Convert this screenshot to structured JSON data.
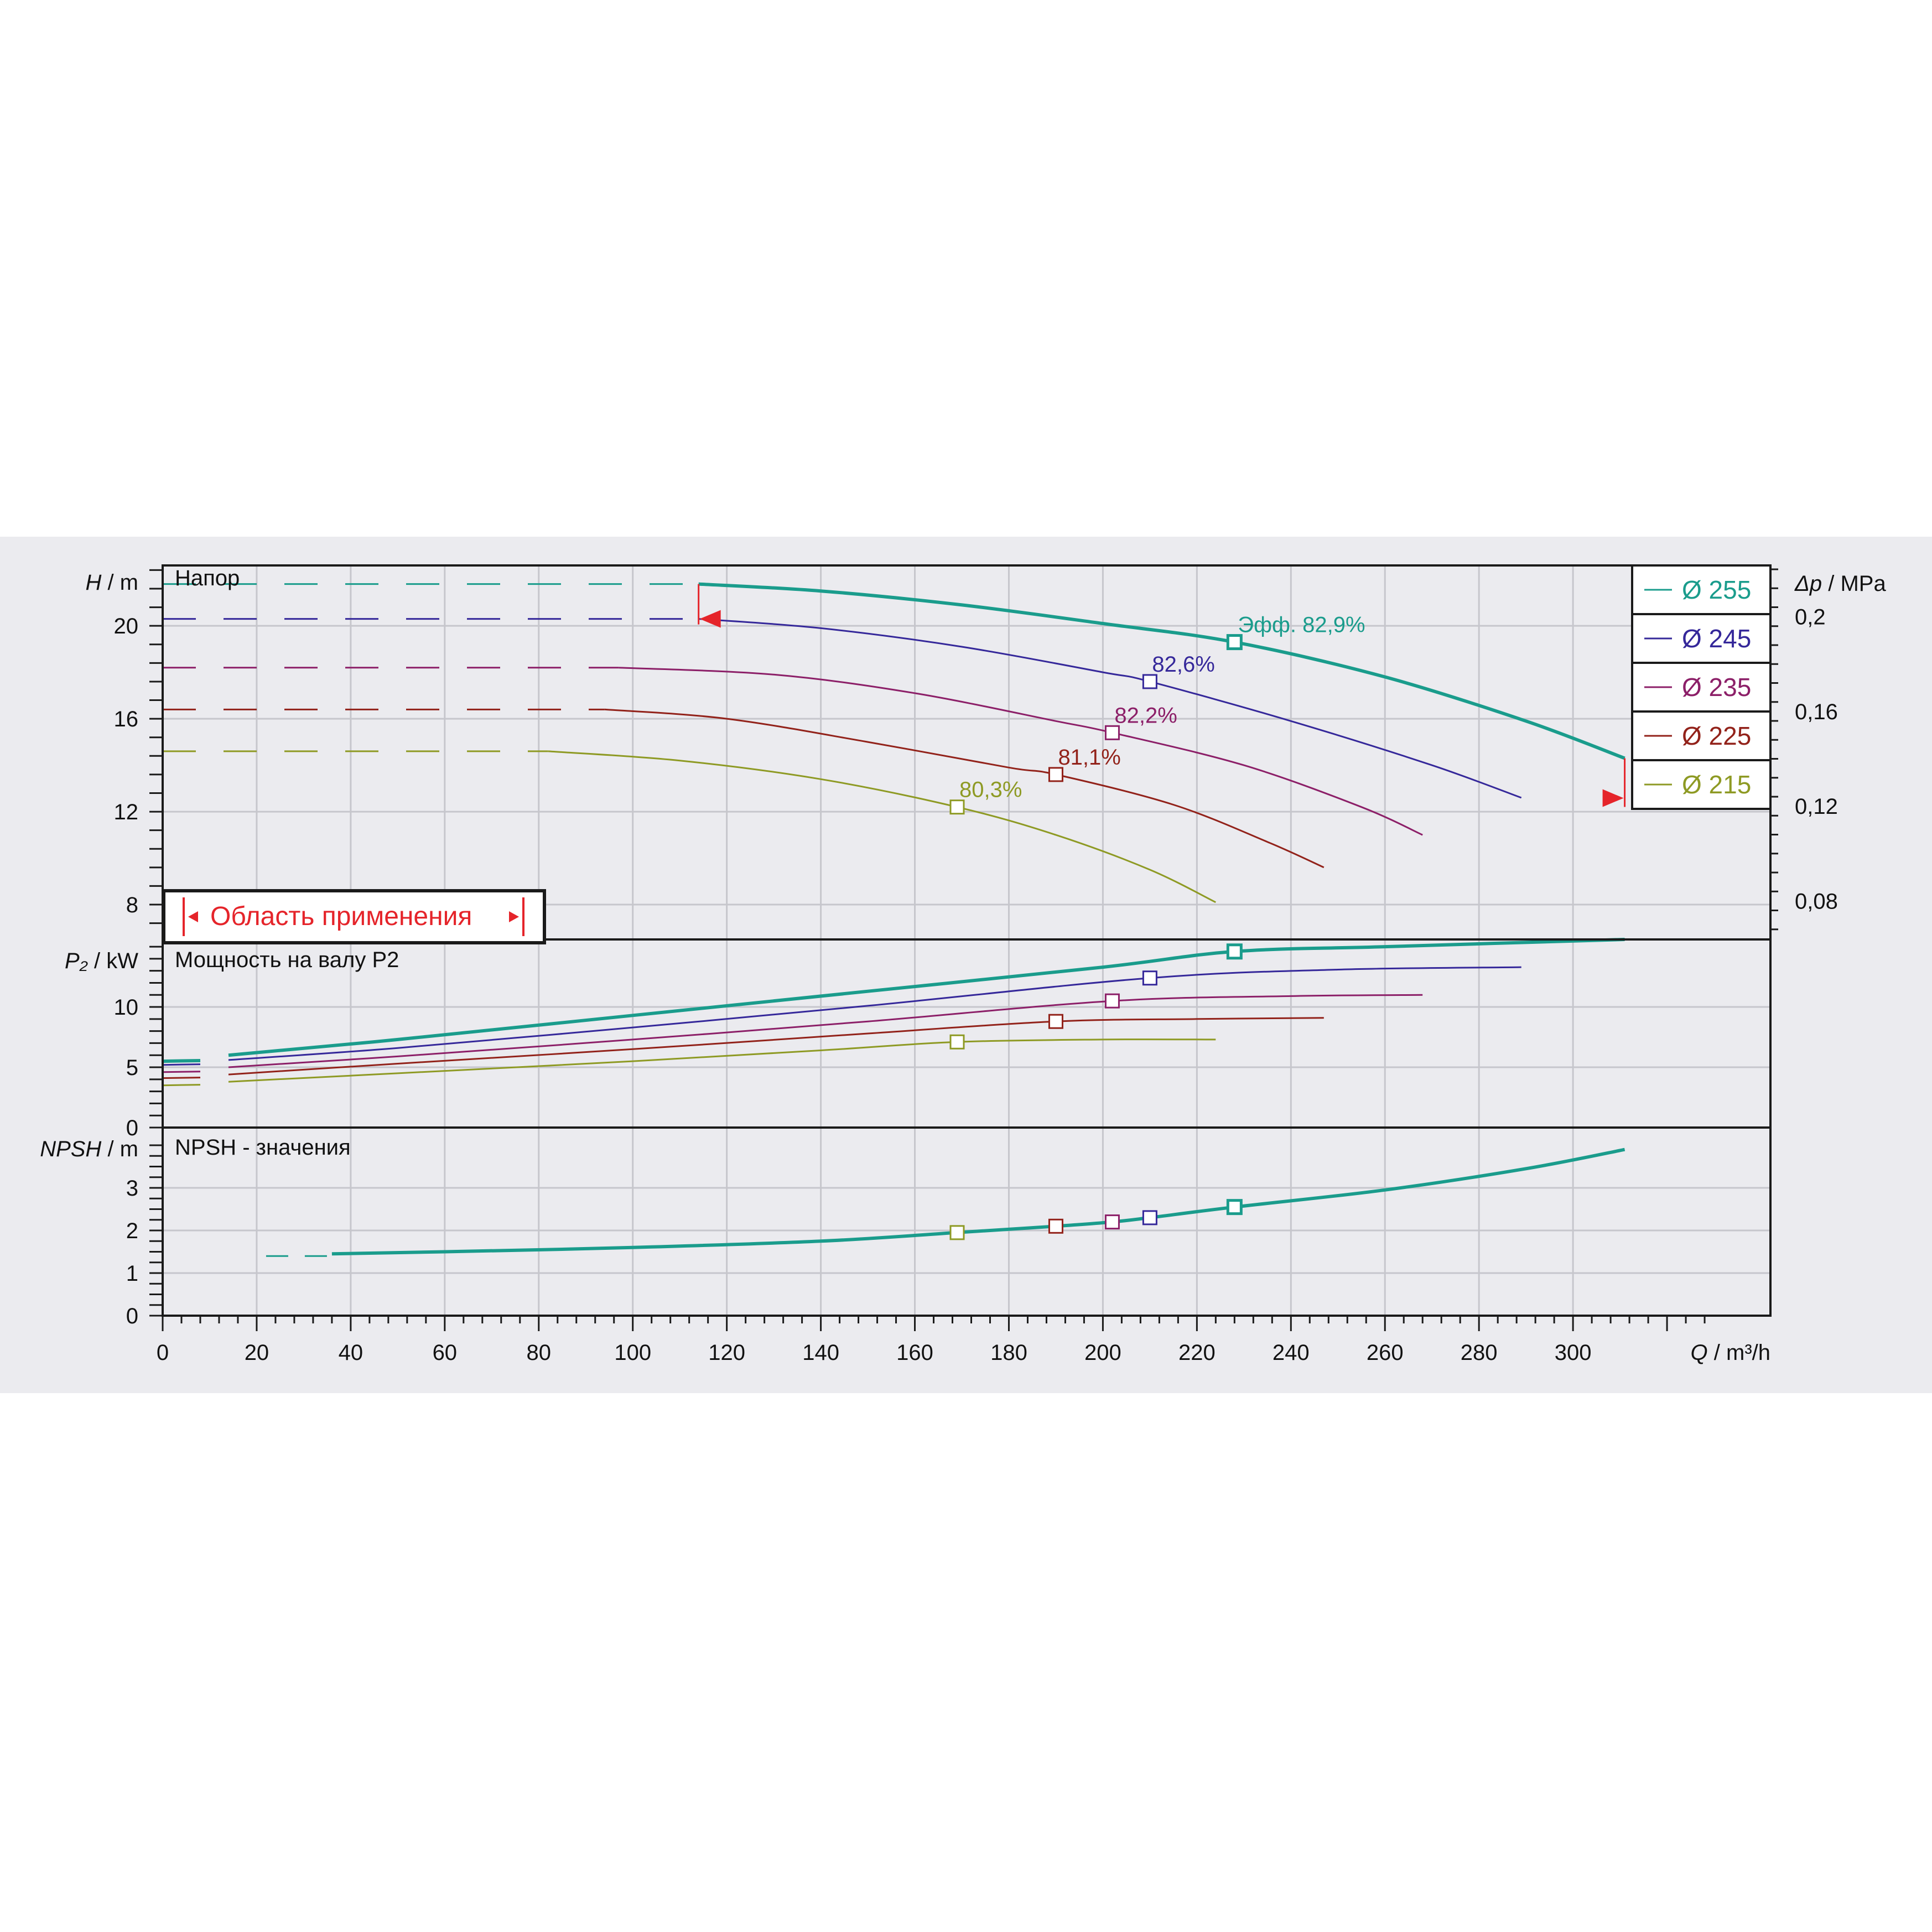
{
  "chart_data": [
    {
      "type": "line",
      "panel": "head",
      "title": "Напор",
      "ylabel_var": "H",
      "ylabel_unit": "m",
      "yticks": [
        "8",
        "12",
        "16",
        "20"
      ],
      "ylim": [
        6.5,
        22.6
      ],
      "right_axis": {
        "label_var": "Δp",
        "label_unit": "MPa",
        "ticks": [
          "0,08",
          "0,12",
          "0,16",
          "0,2"
        ],
        "tick_values": [
          0.08,
          0.12,
          0.16,
          0.2
        ]
      },
      "application_range_label": "Область применения",
      "application_range": [
        114,
        311
      ],
      "series": [
        {
          "name": "Ø 255",
          "color": "#1a9c8c",
          "dashed_x": [
            0,
            114
          ],
          "x": [
            114,
            140,
            170,
            200,
            228,
            260,
            290,
            311
          ],
          "y": [
            21.8,
            21.5,
            20.9,
            20.1,
            19.3,
            17.8,
            15.9,
            14.3
          ],
          "bep": {
            "x": 228,
            "y": 19.3,
            "label": "Эфф.  82,9%"
          }
        },
        {
          "name": "Ø 245",
          "color": "#35289a",
          "dashed_x": [
            0,
            114
          ],
          "x": [
            114,
            140,
            170,
            200,
            210,
            240,
            270,
            289
          ],
          "y": [
            20.3,
            19.9,
            19.1,
            18.0,
            17.6,
            15.9,
            14.0,
            12.6
          ],
          "bep": {
            "x": 210,
            "y": 17.6,
            "label": "82,6%"
          }
        },
        {
          "name": "Ø 235",
          "color": "#8c1f68",
          "dashed_x": [
            0,
            97
          ],
          "x": [
            97,
            130,
            160,
            190,
            202,
            230,
            255,
            268
          ],
          "y": [
            18.2,
            17.9,
            17.1,
            15.9,
            15.4,
            14.0,
            12.2,
            11.0
          ],
          "bep": {
            "x": 202,
            "y": 15.4,
            "label": "82,2%"
          }
        },
        {
          "name": "Ø 225",
          "color": "#92221a",
          "dashed_x": [
            0,
            94
          ],
          "x": [
            94,
            120,
            150,
            180,
            190,
            215,
            235,
            247
          ],
          "y": [
            16.4,
            16.0,
            15.0,
            13.9,
            13.6,
            12.3,
            10.7,
            9.6
          ],
          "bep": {
            "x": 190,
            "y": 13.6,
            "label": "81,1%"
          }
        },
        {
          "name": "Ø 215",
          "color": "#8e9a24",
          "dashed_x": [
            0,
            82
          ],
          "x": [
            82,
            110,
            140,
            169,
            190,
            210,
            224
          ],
          "y": [
            14.6,
            14.2,
            13.4,
            12.2,
            11.0,
            9.5,
            8.1
          ],
          "bep": {
            "x": 169,
            "y": 12.2,
            "label": "80,3%"
          }
        }
      ]
    },
    {
      "type": "line",
      "panel": "power",
      "title": "Мощность на валу P2",
      "ylabel_var": "P₂",
      "ylabel_unit": "kW",
      "yticks": [
        "0",
        "5",
        "10"
      ],
      "ylim": [
        0,
        15.6
      ],
      "series": [
        {
          "name": "Ø 255",
          "color": "#1a9c8c",
          "x": [
            0,
            14,
            50,
            100,
            150,
            200,
            228,
            260,
            311
          ],
          "y": [
            5.5,
            6.0,
            7.3,
            9.3,
            11.3,
            13.3,
            14.6,
            15.0,
            15.6
          ],
          "bep_x": 228,
          "bep_y": 14.6
        },
        {
          "name": "Ø 245",
          "color": "#35289a",
          "x": [
            0,
            14,
            50,
            100,
            150,
            210,
            250,
            289
          ],
          "y": [
            5.2,
            5.6,
            6.6,
            8.3,
            10.1,
            12.4,
            13.1,
            13.3
          ],
          "bep_x": 210,
          "bep_y": 12.4
        },
        {
          "name": "Ø 235",
          "color": "#8c1f68",
          "x": [
            0,
            14,
            50,
            100,
            150,
            202,
            240,
            268
          ],
          "y": [
            4.6,
            5.0,
            5.9,
            7.3,
            8.8,
            10.5,
            10.9,
            11.0
          ],
          "bep_x": 202,
          "bep_y": 10.5
        },
        {
          "name": "Ø 225",
          "color": "#92221a",
          "x": [
            0,
            14,
            50,
            100,
            150,
            190,
            220,
            247
          ],
          "y": [
            4.1,
            4.4,
            5.3,
            6.5,
            7.8,
            8.8,
            9.0,
            9.1
          ],
          "bep_x": 190,
          "bep_y": 8.8
        },
        {
          "name": "Ø 215",
          "color": "#8e9a24",
          "x": [
            0,
            14,
            50,
            100,
            140,
            169,
            200,
            224
          ],
          "y": [
            3.5,
            3.8,
            4.5,
            5.5,
            6.4,
            7.1,
            7.3,
            7.3
          ],
          "bep_x": 169,
          "bep_y": 7.1
        }
      ]
    },
    {
      "type": "line",
      "panel": "npsh",
      "title": "NPSH - значения",
      "ylabel_var": "NPSH",
      "ylabel_unit": "m",
      "yticks": [
        "0",
        "1",
        "2",
        "3"
      ],
      "ylim": [
        0,
        4.0
      ],
      "series": [
        {
          "name": "Ø 255",
          "color": "#1a9c8c",
          "dashed_x": [
            22,
            36
          ],
          "x": [
            36,
            60,
            100,
            140,
            169,
            190,
            202,
            210,
            228,
            260,
            290,
            311
          ],
          "y": [
            1.45,
            1.5,
            1.6,
            1.75,
            1.95,
            2.1,
            2.2,
            2.3,
            2.55,
            2.95,
            3.45,
            3.9
          ]
        }
      ],
      "markers": [
        {
          "series": "Ø 215",
          "color": "#8e9a24",
          "x": 169,
          "y": 1.95
        },
        {
          "series": "Ø 225",
          "color": "#92221a",
          "x": 190,
          "y": 2.1
        },
        {
          "series": "Ø 235",
          "color": "#8c1f68",
          "x": 202,
          "y": 2.2
        },
        {
          "series": "Ø 245",
          "color": "#35289a",
          "x": 210,
          "y": 2.3
        },
        {
          "series": "Ø 255",
          "color": "#1a9c8c",
          "x": 228,
          "y": 2.55
        }
      ]
    }
  ],
  "x_axis": {
    "label_var": "Q",
    "label_unit": "m³/h",
    "ticks": [
      "0",
      "20",
      "40",
      "60",
      "80",
      "100",
      "120",
      "140",
      "160",
      "180",
      "200",
      "220",
      "240",
      "260",
      "280",
      "300"
    ],
    "tick_values": [
      0,
      20,
      40,
      60,
      80,
      100,
      120,
      140,
      160,
      180,
      200,
      220,
      240,
      260,
      280,
      300
    ],
    "xlim": [
      0,
      342
    ]
  },
  "legend": {
    "placement": "top-right",
    "items": [
      "Ø 255",
      "Ø 245",
      "Ø 235",
      "Ø 225",
      "Ø 215"
    ]
  },
  "colors": {
    "band": "#ebebef",
    "plot_bg": "#ebebef",
    "grid": "#c6c6cc",
    "range_marker": "#e5242a",
    "frame": "#1a1a1a"
  }
}
